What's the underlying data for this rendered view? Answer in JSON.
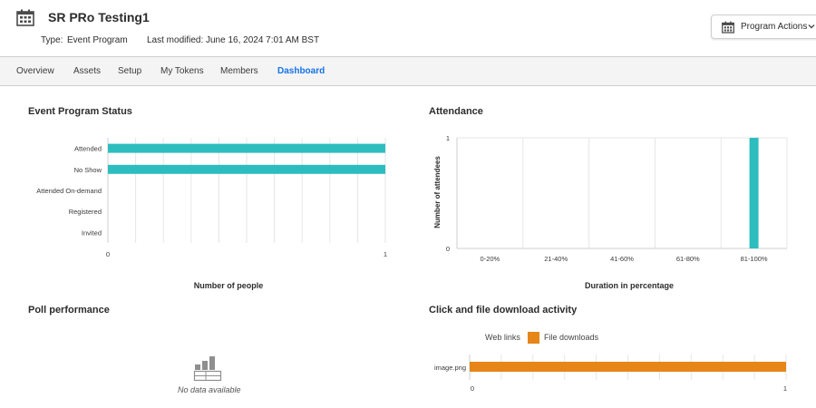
{
  "header": {
    "title": "SR PRo Testing1",
    "type_label": "Type:",
    "type_value": "Event Program",
    "modified_label": "Last modified:",
    "modified_value": "June 16, 2024 7:01 AM BST",
    "actions_label": "Program Actions",
    "icon": "calendar-icon"
  },
  "tabs": [
    {
      "label": "Overview",
      "active": false
    },
    {
      "label": "Assets",
      "active": false
    },
    {
      "label": "Setup",
      "active": false
    },
    {
      "label": "My Tokens",
      "active": false
    },
    {
      "label": "Members",
      "active": false
    },
    {
      "label": "Dashboard",
      "active": true
    }
  ],
  "colors": {
    "teal": "#2ebdbf",
    "orange": "#e68619",
    "active_tab": "#1473e6",
    "grid": "#e6e6e6"
  },
  "sections": {
    "status_title": "Event Program Status",
    "attendance_title": "Attendance",
    "poll_title": "Poll performance",
    "click_title": "Click and file download activity",
    "no_data": "No data available"
  },
  "chart_data": [
    {
      "type": "bar",
      "orientation": "horizontal",
      "categories": [
        "Attended",
        "No Show",
        "Attended On-demand",
        "Registered",
        "Invited"
      ],
      "values": [
        1,
        1,
        0,
        0,
        0
      ],
      "xlabel": "Number of people",
      "xlim": [
        0,
        1
      ],
      "xticks": [
        "0",
        "1"
      ],
      "color": "#2ebdbf",
      "grid": true
    },
    {
      "type": "bar",
      "orientation": "vertical",
      "categories": [
        "0-20%",
        "21-40%",
        "41-60%",
        "61-80%",
        "81-100%"
      ],
      "values": [
        0,
        0,
        0,
        0,
        1
      ],
      "xlabel": "Duration in percentage",
      "ylabel": "Number of attendees",
      "ylim": [
        0,
        1
      ],
      "yticks": [
        "0",
        "1"
      ],
      "color": "#2ebdbf",
      "grid": true
    },
    {
      "type": "bar",
      "orientation": "horizontal",
      "categories": [
        "image.png"
      ],
      "series": [
        {
          "name": "Web links",
          "values": [
            0
          ]
        },
        {
          "name": "File downloads",
          "values": [
            1
          ],
          "color": "#e68619"
        }
      ],
      "xlim": [
        0,
        1
      ],
      "xticks": [
        "0",
        "1"
      ],
      "legend": "top",
      "grid": true
    }
  ]
}
